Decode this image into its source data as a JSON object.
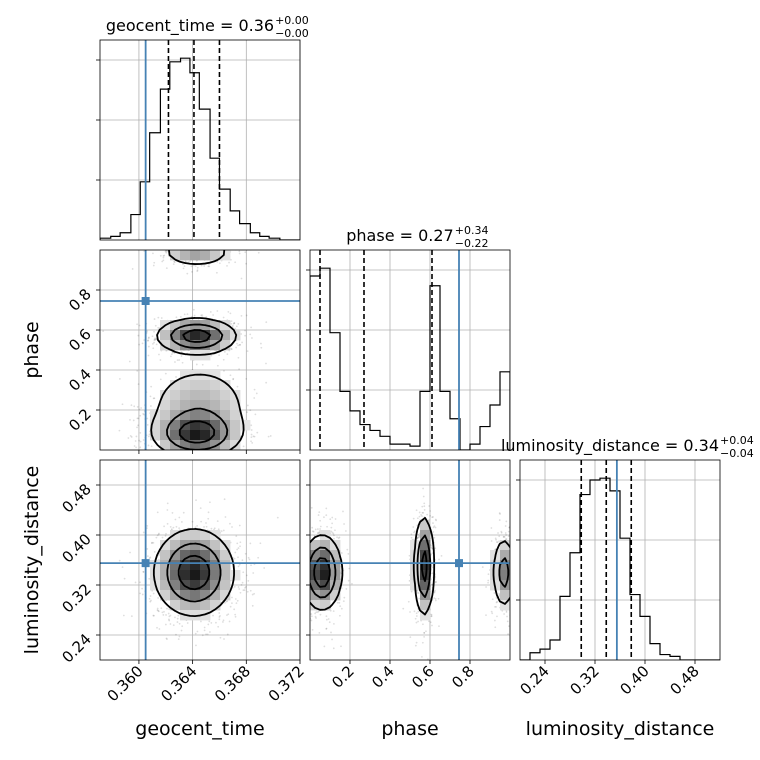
{
  "chart_data": {
    "type": "corner",
    "truth_color": "#4682b4",
    "grid": true,
    "parameters": [
      {
        "name": "geocent_time",
        "truth": 0.3605,
        "range": [
          0.3571,
          0.372
        ],
        "median": 0.3641,
        "lo": 0.3622,
        "hi": 0.366,
        "xticks": [
          "0.360",
          "0.364",
          "0.368",
          "0.372"
        ],
        "xtick_values": [
          0.36,
          0.364,
          0.368,
          0.372
        ],
        "title": {
          "main": "geocent_time = 0.36",
          "sup": "+0.00",
          "sub": "−0.00"
        }
      },
      {
        "name": "phase",
        "truth": 0.745,
        "range": [
          0.0,
          1.0
        ],
        "median": 0.27,
        "lo": 0.05,
        "hi": 0.61,
        "xticks": [
          "0.2",
          "0.4",
          "0.6",
          "0.8"
        ],
        "xtick_values": [
          0.2,
          0.4,
          0.6,
          0.8
        ],
        "yticks": [
          "0.2",
          "0.4",
          "0.6",
          "0.8"
        ],
        "ytick_values": [
          0.2,
          0.4,
          0.6,
          0.8
        ],
        "title": {
          "main": "phase = 0.27",
          "sup": "+0.34",
          "sub": "−0.22"
        }
      },
      {
        "name": "luminosity_distance",
        "truth": 0.355,
        "range": [
          0.2,
          0.52
        ],
        "median": 0.338,
        "lo": 0.298,
        "hi": 0.378,
        "xticks": [
          "0.24",
          "0.32",
          "0.40",
          "0.48"
        ],
        "xtick_values": [
          0.24,
          0.32,
          0.4,
          0.48
        ],
        "yticks": [
          "0.24",
          "0.32",
          "0.40",
          "0.48"
        ],
        "ytick_values": [
          0.24,
          0.32,
          0.4,
          0.48
        ],
        "title": {
          "main": "luminosity_distance = 0.34",
          "sup": "+0.04",
          "sub": "−0.04"
        }
      }
    ],
    "histograms": [
      {
        "param": "geocent_time",
        "bin_edges": [
          0.3571,
          0.3579,
          0.3586,
          0.3594,
          0.3601,
          0.3608,
          0.3616,
          0.3623,
          0.3631,
          0.3638,
          0.3645,
          0.3653,
          0.366,
          0.3668,
          0.3675,
          0.3683,
          0.369,
          0.3697,
          0.3705,
          0.3712,
          0.372
        ],
        "counts": [
          0.01,
          0.02,
          0.04,
          0.14,
          0.32,
          0.59,
          0.83,
          0.98,
          1.0,
          0.92,
          0.72,
          0.45,
          0.28,
          0.16,
          0.09,
          0.04,
          0.02,
          0.01,
          0.0,
          0.0
        ]
      },
      {
        "param": "phase",
        "bin_edges": [
          0.0,
          0.05,
          0.1,
          0.15,
          0.2,
          0.25,
          0.3,
          0.35,
          0.4,
          0.45,
          0.5,
          0.55,
          0.6,
          0.65,
          0.7,
          0.75,
          0.8,
          0.85,
          0.9,
          0.95,
          1.0
        ],
        "counts": [
          0.89,
          0.93,
          0.6,
          0.3,
          0.2,
          0.13,
          0.1,
          0.07,
          0.03,
          0.03,
          0.02,
          0.3,
          0.84,
          0.3,
          0.16,
          0.0,
          0.03,
          0.12,
          0.23,
          0.4
        ]
      },
      {
        "param": "luminosity_distance",
        "bin_edges": [
          0.2,
          0.216,
          0.232,
          0.248,
          0.264,
          0.28,
          0.296,
          0.312,
          0.328,
          0.344,
          0.36,
          0.376,
          0.392,
          0.408,
          0.424,
          0.44,
          0.456,
          0.472,
          0.488,
          0.504,
          0.52
        ],
        "counts": [
          0.0,
          0.04,
          0.06,
          0.11,
          0.35,
          0.59,
          0.91,
          0.99,
          1.0,
          0.93,
          0.67,
          0.36,
          0.24,
          0.09,
          0.03,
          0.02,
          0.0,
          0.0,
          0.0,
          0.0
        ]
      }
    ],
    "pairs": [
      {
        "x": "geocent_time",
        "y": "phase",
        "blobs": [
          {
            "cx": 0.3643,
            "cy": 0.57,
            "sx": 0.0015,
            "sy": 0.045,
            "w": 1.0
          },
          {
            "cx": 0.3643,
            "cy": 0.08,
            "sx": 0.0016,
            "sy": 0.06,
            "w": 0.9
          },
          {
            "cx": 0.3645,
            "cy": 0.22,
            "sx": 0.0022,
            "sy": 0.12,
            "w": 0.35
          },
          {
            "cx": 0.3643,
            "cy": 0.99,
            "sx": 0.0014,
            "sy": 0.04,
            "w": 0.45
          }
        ]
      },
      {
        "x": "geocent_time",
        "y": "luminosity_distance",
        "blobs": [
          {
            "cx": 0.3641,
            "cy": 0.34,
            "sx": 0.0015,
            "sy": 0.035,
            "w": 1.0
          }
        ]
      },
      {
        "x": "phase",
        "y": "luminosity_distance",
        "blobs": [
          {
            "cx": 0.06,
            "cy": 0.34,
            "sx": 0.05,
            "sy": 0.03,
            "w": 0.9
          },
          {
            "cx": 0.57,
            "cy": 0.35,
            "sx": 0.025,
            "sy": 0.04,
            "w": 0.8
          },
          {
            "cx": 0.97,
            "cy": 0.34,
            "sx": 0.03,
            "sy": 0.03,
            "w": 0.5
          }
        ]
      }
    ]
  }
}
